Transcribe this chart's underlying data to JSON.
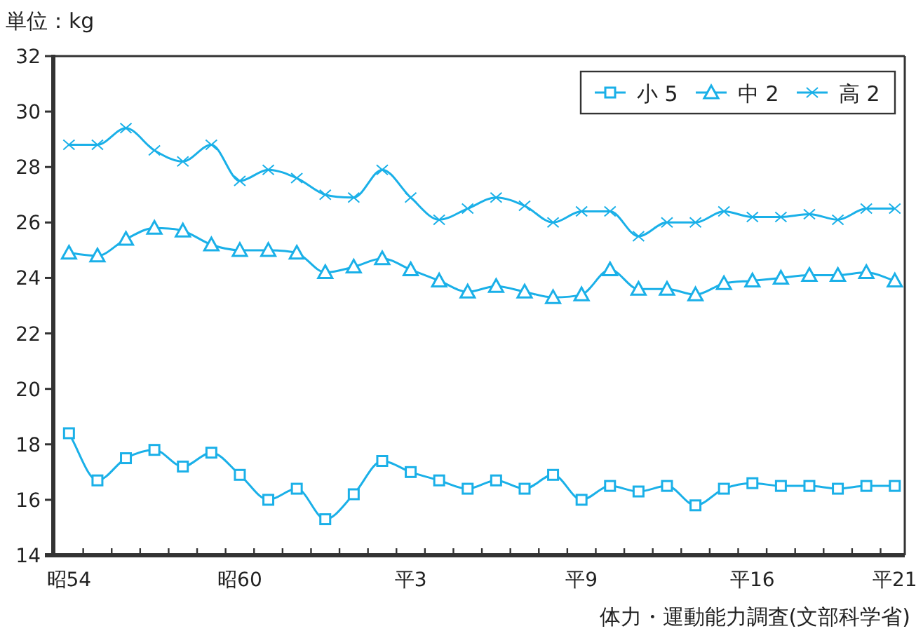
{
  "chart_data": {
    "type": "line",
    "title": "単位：kg",
    "categories": [
      "昭54",
      null,
      null,
      null,
      null,
      null,
      "昭60",
      null,
      null,
      null,
      null,
      null,
      "平3",
      null,
      null,
      null,
      null,
      null,
      "平9",
      null,
      null,
      null,
      null,
      null,
      "平16",
      null,
      null,
      null,
      null,
      "平21"
    ],
    "series": [
      {
        "name": "小 5",
        "color": "#1ab0e8",
        "marker": "square",
        "values": [
          18.4,
          16.7,
          17.5,
          17.8,
          17.2,
          17.7,
          16.9,
          16.0,
          16.4,
          15.3,
          16.2,
          17.4,
          17.0,
          16.7,
          16.4,
          16.7,
          16.4,
          16.9,
          16.0,
          16.5,
          16.3,
          16.5,
          15.8,
          16.4,
          16.6,
          16.5,
          16.5,
          16.4,
          16.5,
          16.5
        ]
      },
      {
        "name": "中 2",
        "color": "#1ab0e8",
        "marker": "triangle",
        "values": [
          24.9,
          24.8,
          25.4,
          25.8,
          25.7,
          25.2,
          25.0,
          25.0,
          24.9,
          24.2,
          24.4,
          24.7,
          24.3,
          23.9,
          23.5,
          23.7,
          23.5,
          23.3,
          23.4,
          24.3,
          23.6,
          23.6,
          23.4,
          23.8,
          23.9,
          24.0,
          24.1,
          24.1,
          24.2,
          23.9
        ]
      },
      {
        "name": "高 2",
        "color": "#1ab0e8",
        "marker": "cross",
        "values": [
          28.8,
          28.8,
          29.4,
          28.6,
          28.2,
          28.8,
          27.5,
          27.9,
          27.6,
          27.0,
          26.9,
          27.9,
          26.9,
          26.1,
          26.5,
          26.9,
          26.6,
          26.0,
          26.4,
          26.4,
          25.5,
          26.0,
          26.0,
          26.4,
          26.2,
          26.2,
          26.3,
          26.1,
          26.5,
          26.5
        ]
      }
    ],
    "ylim": [
      14,
      32
    ],
    "yticks": [
      14,
      16,
      18,
      20,
      22,
      24,
      26,
      28,
      30,
      32
    ],
    "legend": "top right",
    "annotations": [
      "体力・運動能力調査(文部科学省)"
    ]
  }
}
